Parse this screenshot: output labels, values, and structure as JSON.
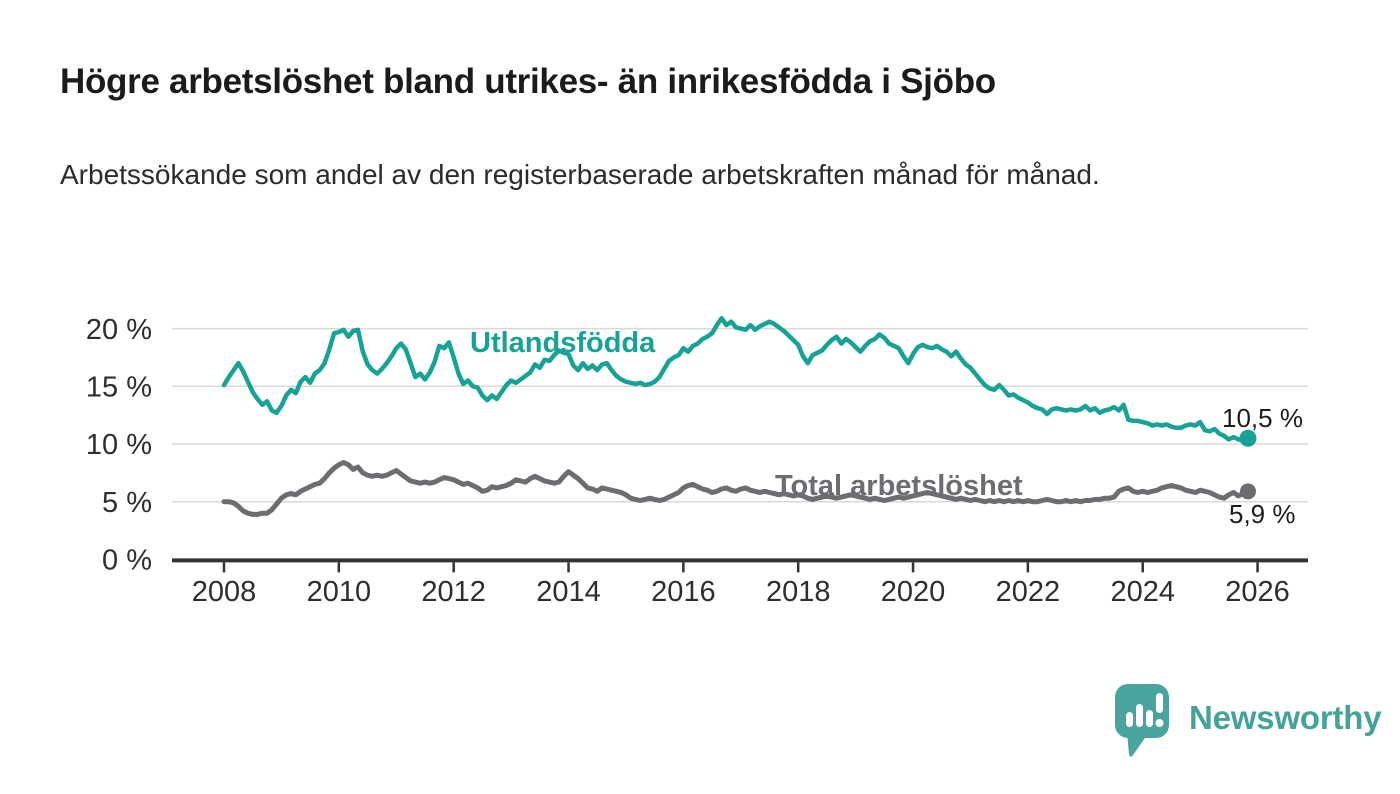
{
  "header": {
    "title": "Högre arbetslöshet bland utrikes- än inrikesfödda i Sjöbo",
    "subtitle": "Arbetssökande som andel av den registerbaserade arbetskraften månad för månad."
  },
  "footer": {
    "brand": "Newsworthy",
    "logo_icon": "speech-bubble-bar-chart-exclamation",
    "brand_color": "#45a29b"
  },
  "colors": {
    "foreign_born_line": "#17a296",
    "total_line": "#6c6c71",
    "gridline": "#d8d8d8",
    "axis": "#333333",
    "text": "#2e2e2e"
  },
  "chart_data": {
    "type": "line",
    "title": "",
    "xlabel": "",
    "ylabel": "",
    "x_start_year": 2008,
    "x_interval": "monthly",
    "x_axis_ticks": [
      {
        "year": 2008,
        "label": "2008"
      },
      {
        "year": 2010,
        "label": "2010"
      },
      {
        "year": 2012,
        "label": "2012"
      },
      {
        "year": 2014,
        "label": "2014"
      },
      {
        "year": 2016,
        "label": "2016"
      },
      {
        "year": 2018,
        "label": "2018"
      },
      {
        "year": 2020,
        "label": "2020"
      },
      {
        "year": 2022,
        "label": "2022"
      },
      {
        "year": 2024,
        "label": "2024"
      },
      {
        "year": 2026,
        "label": "2026"
      }
    ],
    "y_axis_ticks": [
      {
        "value": 0,
        "label": "0 %"
      },
      {
        "value": 5,
        "label": "5 %"
      },
      {
        "value": 10,
        "label": "10 %"
      },
      {
        "value": 15,
        "label": "15 %"
      },
      {
        "value": 20,
        "label": "20 %"
      }
    ],
    "ylim": [
      0,
      22
    ],
    "grid": true,
    "legend_position": "inline-labels",
    "series": [
      {
        "name": "Utlandsfödda",
        "color": "#17a296",
        "line_width": 4.5,
        "end_label": "10,5 %",
        "end_value": 10.5,
        "values": [
          15.1,
          15.8,
          16.4,
          17.0,
          16.3,
          15.4,
          14.5,
          13.9,
          13.4,
          13.7,
          12.9,
          12.7,
          13.3,
          14.2,
          14.7,
          14.4,
          15.4,
          15.8,
          15.3,
          16.1,
          16.4,
          17.0,
          18.2,
          19.6,
          19.7,
          19.9,
          19.3,
          19.8,
          19.9,
          18.0,
          16.9,
          16.4,
          16.1,
          16.5,
          17.0,
          17.6,
          18.3,
          18.7,
          18.2,
          17.0,
          15.8,
          16.1,
          15.6,
          16.2,
          17.1,
          18.5,
          18.3,
          18.8,
          17.5,
          16.1,
          15.2,
          15.5,
          15.0,
          14.9,
          14.2,
          13.8,
          14.2,
          13.9,
          14.5,
          15.1,
          15.5,
          15.3,
          15.6,
          15.9,
          16.2,
          16.9,
          16.6,
          17.3,
          17.2,
          17.7,
          18.1,
          17.9,
          17.8,
          16.8,
          16.4,
          17.0,
          16.5,
          16.8,
          16.4,
          16.9,
          17.0,
          16.4,
          15.9,
          15.6,
          15.4,
          15.3,
          15.2,
          15.3,
          15.1,
          15.2,
          15.4,
          15.8,
          16.5,
          17.2,
          17.5,
          17.7,
          18.3,
          18.0,
          18.5,
          18.7,
          19.1,
          19.3,
          19.6,
          20.3,
          20.9,
          20.3,
          20.6,
          20.1,
          20.0,
          19.9,
          20.3,
          19.9,
          20.2,
          20.4,
          20.6,
          20.4,
          20.1,
          19.8,
          19.4,
          19.0,
          18.6,
          17.6,
          17.0,
          17.7,
          17.9,
          18.1,
          18.6,
          19.0,
          19.3,
          18.7,
          19.1,
          18.8,
          18.4,
          18.0,
          18.5,
          18.9,
          19.1,
          19.5,
          19.2,
          18.7,
          18.5,
          18.3,
          17.6,
          17.0,
          17.8,
          18.4,
          18.6,
          18.4,
          18.3,
          18.5,
          18.2,
          18.0,
          17.6,
          18.0,
          17.4,
          16.9,
          16.6,
          16.1,
          15.6,
          15.1,
          14.8,
          14.7,
          15.1,
          14.7,
          14.2,
          14.3,
          14.0,
          13.8,
          13.6,
          13.3,
          13.1,
          13.0,
          12.6,
          13.0,
          13.1,
          13.0,
          12.9,
          13.0,
          12.9,
          13.0,
          13.3,
          12.9,
          13.1,
          12.7,
          12.9,
          13.0,
          13.2,
          12.9,
          13.4,
          12.1,
          12.0,
          12.0,
          11.9,
          11.8,
          11.6,
          11.7,
          11.6,
          11.7,
          11.5,
          11.4,
          11.4,
          11.6,
          11.7,
          11.6,
          11.9,
          11.2,
          11.1,
          11.3,
          10.9,
          10.7,
          10.4,
          10.6,
          10.4,
          10.3,
          10.5
        ]
      },
      {
        "name": "Total arbetslöshet",
        "color": "#6c6c71",
        "line_width": 5,
        "end_label": "5,9 %",
        "end_value": 5.9,
        "values": [
          5.0,
          5.0,
          4.9,
          4.6,
          4.2,
          4.0,
          3.9,
          3.9,
          4.0,
          4.0,
          4.3,
          4.8,
          5.3,
          5.6,
          5.7,
          5.6,
          5.9,
          6.1,
          6.3,
          6.5,
          6.6,
          7.0,
          7.5,
          7.9,
          8.2,
          8.4,
          8.2,
          7.8,
          8.0,
          7.5,
          7.3,
          7.2,
          7.3,
          7.2,
          7.3,
          7.5,
          7.7,
          7.4,
          7.1,
          6.8,
          6.7,
          6.6,
          6.7,
          6.6,
          6.7,
          6.9,
          7.1,
          7.0,
          6.9,
          6.7,
          6.5,
          6.6,
          6.4,
          6.2,
          5.9,
          6.0,
          6.3,
          6.2,
          6.3,
          6.4,
          6.6,
          6.9,
          6.8,
          6.7,
          7.0,
          7.2,
          7.0,
          6.8,
          6.7,
          6.6,
          6.7,
          7.2,
          7.6,
          7.3,
          7.0,
          6.6,
          6.2,
          6.1,
          5.9,
          6.2,
          6.1,
          6.0,
          5.9,
          5.8,
          5.6,
          5.3,
          5.2,
          5.1,
          5.2,
          5.3,
          5.2,
          5.1,
          5.2,
          5.4,
          5.6,
          5.8,
          6.2,
          6.4,
          6.5,
          6.3,
          6.1,
          6.0,
          5.8,
          5.9,
          6.1,
          6.2,
          6.0,
          5.9,
          6.1,
          6.2,
          6.0,
          5.9,
          5.8,
          5.9,
          5.8,
          5.7,
          5.6,
          5.7,
          5.6,
          5.5,
          5.6,
          5.5,
          5.3,
          5.2,
          5.3,
          5.4,
          5.5,
          5.4,
          5.3,
          5.4,
          5.5,
          5.6,
          5.5,
          5.4,
          5.3,
          5.2,
          5.3,
          5.2,
          5.1,
          5.2,
          5.3,
          5.4,
          5.3,
          5.4,
          5.5,
          5.6,
          5.7,
          5.8,
          5.7,
          5.6,
          5.5,
          5.4,
          5.3,
          5.2,
          5.3,
          5.2,
          5.1,
          5.2,
          5.1,
          5.0,
          5.1,
          5.0,
          5.1,
          5.0,
          5.1,
          5.0,
          5.1,
          5.0,
          5.1,
          5.0,
          5.0,
          5.1,
          5.2,
          5.1,
          5.0,
          5.0,
          5.1,
          5.0,
          5.1,
          5.0,
          5.1,
          5.1,
          5.2,
          5.2,
          5.3,
          5.3,
          5.4,
          5.9,
          6.1,
          6.2,
          5.9,
          5.8,
          5.9,
          5.8,
          5.9,
          6.0,
          6.2,
          6.3,
          6.4,
          6.3,
          6.2,
          6.0,
          5.9,
          5.8,
          6.0,
          5.9,
          5.8,
          5.6,
          5.4,
          5.3,
          5.6,
          5.8,
          5.5,
          5.7,
          5.9
        ]
      }
    ]
  }
}
